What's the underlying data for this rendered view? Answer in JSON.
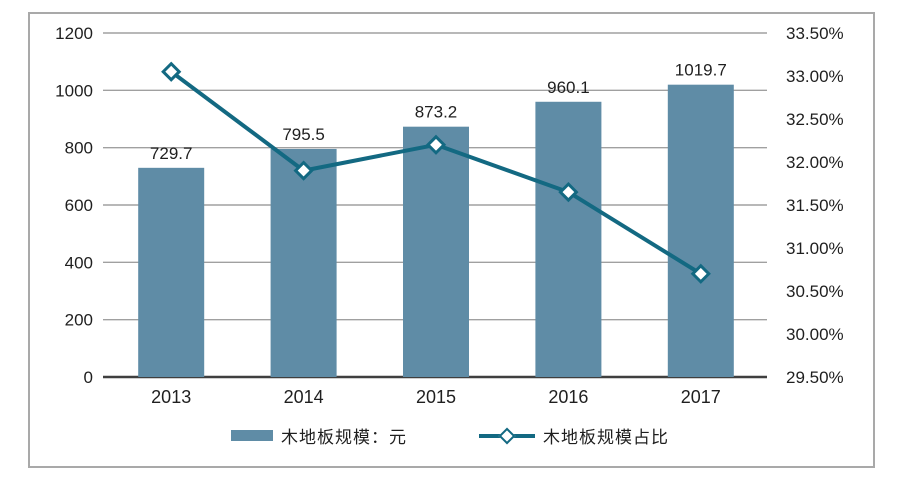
{
  "chart_data": {
    "type": "combo-bar-line",
    "categories": [
      "2013",
      "2014",
      "2015",
      "2016",
      "2017"
    ],
    "series": [
      {
        "name": "木地板规模：元",
        "type": "bar",
        "axis": "left",
        "color": "#5f8ca6",
        "values": [
          729.7,
          795.5,
          873.2,
          960.1,
          1019.7
        ],
        "data_labels": [
          "729.7",
          "795.5",
          "873.2",
          "960.1",
          "1019.7"
        ]
      },
      {
        "name": "木地板规模占比",
        "type": "line",
        "axis": "right",
        "color": "#136982",
        "marker": "diamond",
        "marker_fill": "#ffffff",
        "values": [
          33.05,
          31.9,
          32.2,
          31.65,
          30.7
        ]
      }
    ],
    "left_axis": {
      "min": 0,
      "max": 1200,
      "step": 200,
      "tick_labels": [
        "1200",
        "1000",
        "800",
        "600",
        "400",
        "200",
        "0"
      ]
    },
    "right_axis": {
      "min": 29.5,
      "max": 33.5,
      "step": 0.5,
      "tick_labels": [
        "33.50%",
        "33.00%",
        "32.50%",
        "32.00%",
        "31.50%",
        "31.00%",
        "30.50%",
        "30.00%",
        "29.50%"
      ]
    },
    "grid": "horizontal",
    "legend_position": "bottom"
  },
  "legend": {
    "bar_label": "木地板规模：元",
    "line_label": "木地板规模占比"
  },
  "colors": {
    "bar_fill": "#5f8ca6",
    "line_stroke": "#136982",
    "gridline": "#a0a0a0",
    "axis_line": "#3f3f3f",
    "frame_border": "#a9a9a9",
    "text": "#1f1f1f",
    "background": "#ffffff"
  }
}
